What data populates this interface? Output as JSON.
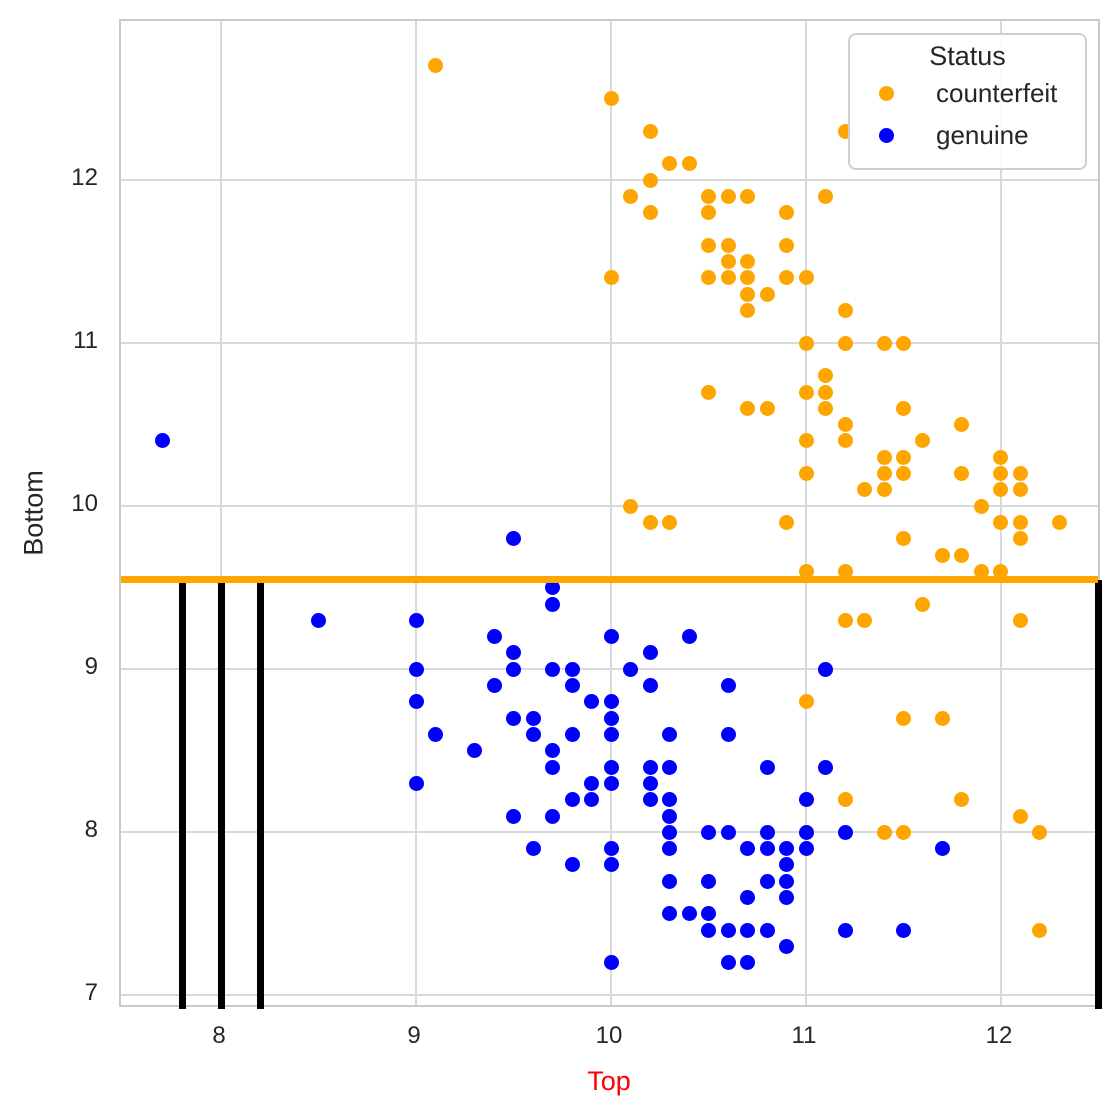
{
  "figure": {
    "background": "#ffffff",
    "plot_border_color": "#c9c9c9",
    "grid_color": "#d9d9d9"
  },
  "axes": {
    "x_label": "Top",
    "x_label_color": "#ff0000",
    "y_label": "Bottom",
    "y_label_color": "#262626",
    "tick_color": "#262626"
  },
  "legend": {
    "title": "Status",
    "items": [
      {
        "label": "counterfeit",
        "color": "#ffa500"
      },
      {
        "label": "genuine",
        "color": "#0000ff"
      }
    ]
  },
  "chart_data": {
    "type": "scatter",
    "title": "",
    "xlabel": "Top",
    "ylabel": "Bottom",
    "xlim": [
      7.487,
      12.518
    ],
    "ylim": [
      6.917,
      12.975
    ],
    "x_ticks": [
      8,
      9,
      10,
      11,
      12
    ],
    "y_ticks": [
      7,
      8,
      9,
      10,
      11,
      12
    ],
    "grid": true,
    "legend_title": "Status",
    "legend_position": "upper right",
    "hline": {
      "y": 9.55,
      "color": "#ffa500",
      "thickness_px": 7
    },
    "vlines": {
      "x": [
        7.8,
        8.0,
        8.2,
        12.5
      ],
      "color": "#000000",
      "y_from": 6.917,
      "y_to": 9.55,
      "thickness_px": 7
    },
    "series": [
      {
        "name": "counterfeit",
        "color": "#ffa500",
        "points": [
          [
            9.1,
            12.7
          ],
          [
            10.0,
            12.5
          ],
          [
            10.2,
            12.3
          ],
          [
            11.2,
            12.3
          ],
          [
            10.3,
            12.1
          ],
          [
            10.4,
            12.1
          ],
          [
            10.2,
            12.0
          ],
          [
            10.1,
            11.9
          ],
          [
            10.5,
            11.9
          ],
          [
            10.6,
            11.9
          ],
          [
            10.7,
            11.9
          ],
          [
            11.1,
            11.9
          ],
          [
            10.2,
            11.8
          ],
          [
            10.5,
            11.8
          ],
          [
            10.9,
            11.8
          ],
          [
            10.5,
            11.6
          ],
          [
            10.6,
            11.6
          ],
          [
            10.9,
            11.6
          ],
          [
            10.6,
            11.5
          ],
          [
            10.7,
            11.5
          ],
          [
            10.0,
            11.4
          ],
          [
            10.5,
            11.4
          ],
          [
            10.6,
            11.4
          ],
          [
            10.7,
            11.4
          ],
          [
            10.9,
            11.4
          ],
          [
            11.0,
            11.4
          ],
          [
            10.7,
            11.3
          ],
          [
            10.8,
            11.3
          ],
          [
            10.7,
            11.2
          ],
          [
            11.2,
            11.2
          ],
          [
            11.0,
            11.0
          ],
          [
            11.2,
            11.0
          ],
          [
            11.4,
            11.0
          ],
          [
            11.5,
            11.0
          ],
          [
            11.1,
            10.8
          ],
          [
            10.5,
            10.7
          ],
          [
            11.0,
            10.7
          ],
          [
            11.1,
            10.7
          ],
          [
            10.7,
            10.6
          ],
          [
            10.8,
            10.6
          ],
          [
            11.1,
            10.6
          ],
          [
            11.5,
            10.6
          ],
          [
            11.2,
            10.5
          ],
          [
            11.8,
            10.5
          ],
          [
            11.0,
            10.4
          ],
          [
            11.2,
            10.4
          ],
          [
            11.6,
            10.4
          ],
          [
            11.4,
            10.3
          ],
          [
            11.5,
            10.3
          ],
          [
            12.0,
            10.3
          ],
          [
            11.0,
            10.2
          ],
          [
            11.4,
            10.2
          ],
          [
            11.5,
            10.2
          ],
          [
            11.8,
            10.2
          ],
          [
            12.0,
            10.2
          ],
          [
            12.1,
            10.2
          ],
          [
            11.3,
            10.1
          ],
          [
            11.4,
            10.1
          ],
          [
            12.0,
            10.1
          ],
          [
            12.1,
            10.1
          ],
          [
            10.1,
            10.0
          ],
          [
            11.9,
            10.0
          ],
          [
            10.2,
            9.9
          ],
          [
            10.3,
            9.9
          ],
          [
            10.9,
            9.9
          ],
          [
            12.0,
            9.9
          ],
          [
            12.1,
            9.9
          ],
          [
            12.3,
            9.9
          ],
          [
            11.5,
            9.8
          ],
          [
            12.1,
            9.8
          ],
          [
            11.7,
            9.7
          ],
          [
            11.8,
            9.7
          ],
          [
            11.0,
            9.6
          ],
          [
            11.2,
            9.6
          ],
          [
            11.9,
            9.6
          ],
          [
            12.0,
            9.6
          ],
          [
            11.6,
            9.4
          ],
          [
            11.2,
            9.3
          ],
          [
            11.3,
            9.3
          ],
          [
            12.1,
            9.3
          ],
          [
            11.0,
            8.8
          ],
          [
            11.5,
            8.7
          ],
          [
            11.7,
            8.7
          ],
          [
            11.2,
            8.2
          ],
          [
            11.8,
            8.2
          ],
          [
            12.1,
            8.1
          ],
          [
            11.4,
            8.0
          ],
          [
            11.5,
            8.0
          ],
          [
            12.2,
            8.0
          ],
          [
            12.2,
            7.4
          ]
        ]
      },
      {
        "name": "genuine",
        "color": "#0000ff",
        "points": [
          [
            7.7,
            10.4
          ],
          [
            9.5,
            9.8
          ],
          [
            9.7,
            9.5
          ],
          [
            9.7,
            9.4
          ],
          [
            8.5,
            9.3
          ],
          [
            9.0,
            9.3
          ],
          [
            9.4,
            9.2
          ],
          [
            10.0,
            9.2
          ],
          [
            10.4,
            9.2
          ],
          [
            9.5,
            9.1
          ],
          [
            10.2,
            9.1
          ],
          [
            9.0,
            9.0
          ],
          [
            9.5,
            9.0
          ],
          [
            9.7,
            9.0
          ],
          [
            9.8,
            9.0
          ],
          [
            10.1,
            9.0
          ],
          [
            11.1,
            9.0
          ],
          [
            9.4,
            8.9
          ],
          [
            9.8,
            8.9
          ],
          [
            10.2,
            8.9
          ],
          [
            10.6,
            8.9
          ],
          [
            9.0,
            8.8
          ],
          [
            9.9,
            8.8
          ],
          [
            10.0,
            8.8
          ],
          [
            9.5,
            8.7
          ],
          [
            9.6,
            8.7
          ],
          [
            10.0,
            8.7
          ],
          [
            9.1,
            8.6
          ],
          [
            9.6,
            8.6
          ],
          [
            9.8,
            8.6
          ],
          [
            10.0,
            8.6
          ],
          [
            10.3,
            8.6
          ],
          [
            10.6,
            8.6
          ],
          [
            9.3,
            8.5
          ],
          [
            9.7,
            8.5
          ],
          [
            9.7,
            8.4
          ],
          [
            10.0,
            8.4
          ],
          [
            10.2,
            8.4
          ],
          [
            10.3,
            8.4
          ],
          [
            10.8,
            8.4
          ],
          [
            11.1,
            8.4
          ],
          [
            9.0,
            8.3
          ],
          [
            9.9,
            8.3
          ],
          [
            10.0,
            8.3
          ],
          [
            10.2,
            8.3
          ],
          [
            9.8,
            8.2
          ],
          [
            9.9,
            8.2
          ],
          [
            10.2,
            8.2
          ],
          [
            10.3,
            8.2
          ],
          [
            11.0,
            8.2
          ],
          [
            9.5,
            8.1
          ],
          [
            9.7,
            8.1
          ],
          [
            10.3,
            8.1
          ],
          [
            10.3,
            8.0
          ],
          [
            10.5,
            8.0
          ],
          [
            10.6,
            8.0
          ],
          [
            10.8,
            8.0
          ],
          [
            11.0,
            8.0
          ],
          [
            11.2,
            8.0
          ],
          [
            9.6,
            7.9
          ],
          [
            10.0,
            7.9
          ],
          [
            10.3,
            7.9
          ],
          [
            10.7,
            7.9
          ],
          [
            10.8,
            7.9
          ],
          [
            10.9,
            7.9
          ],
          [
            11.0,
            7.9
          ],
          [
            11.7,
            7.9
          ],
          [
            9.8,
            7.8
          ],
          [
            10.0,
            7.8
          ],
          [
            10.9,
            7.8
          ],
          [
            10.3,
            7.7
          ],
          [
            10.5,
            7.7
          ],
          [
            10.8,
            7.7
          ],
          [
            10.9,
            7.7
          ],
          [
            10.7,
            7.6
          ],
          [
            10.9,
            7.6
          ],
          [
            10.3,
            7.5
          ],
          [
            10.4,
            7.5
          ],
          [
            10.5,
            7.5
          ],
          [
            10.5,
            7.4
          ],
          [
            10.6,
            7.4
          ],
          [
            10.7,
            7.4
          ],
          [
            10.8,
            7.4
          ],
          [
            11.2,
            7.4
          ],
          [
            11.5,
            7.4
          ],
          [
            10.9,
            7.3
          ],
          [
            10.0,
            7.2
          ],
          [
            10.6,
            7.2
          ],
          [
            10.7,
            7.2
          ]
        ]
      }
    ]
  }
}
